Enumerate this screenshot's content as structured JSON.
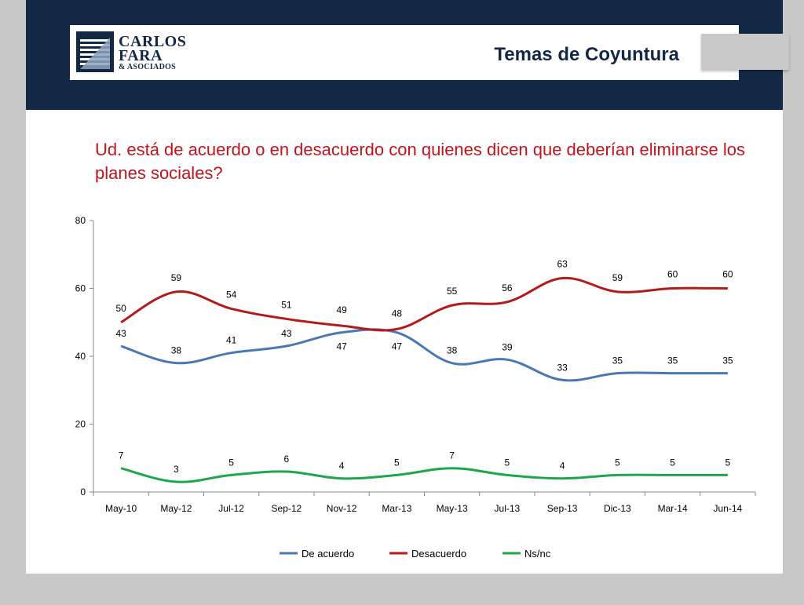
{
  "header": {
    "logo": {
      "line1": "CARLOS",
      "line2": "FARA",
      "line3": "& ASOCIADOS"
    },
    "title": "Temas de Coyuntura"
  },
  "question": "Ud. está de acuerdo o en desacuerdo con quienes dicen que deberían eliminarse los planes sociales?",
  "colors": {
    "header_bg": "#132845",
    "question": "#c0141c",
    "de_acuerdo": "#4a78b5",
    "desacuerdo": "#b51a1a",
    "nsnc": "#1ea64a"
  },
  "chart_data": {
    "type": "line",
    "categories": [
      "May-10",
      "May-12",
      "Jul-12",
      "Sep-12",
      "Nov-12",
      "Mar-13",
      "May-13",
      "Jul-13",
      "Sep-13",
      "Dic-13",
      "Mar-14",
      "Jun-14"
    ],
    "ylim": [
      0,
      80
    ],
    "yticks": [
      "0",
      "20",
      "40",
      "60",
      "80"
    ],
    "grid": false,
    "legend_position": "bottom",
    "series": [
      {
        "name": "De acuerdo",
        "color": "#4a78b5",
        "values": [
          43,
          38,
          41,
          43,
          47,
          47,
          38,
          39,
          33,
          35,
          35,
          35
        ]
      },
      {
        "name": "Desacuerdo",
        "color": "#b51a1a",
        "values": [
          50,
          59,
          54,
          51,
          49,
          48,
          55,
          56,
          63,
          59,
          60,
          60
        ]
      },
      {
        "name": "Ns/nc",
        "color": "#1ea64a",
        "values": [
          7,
          3,
          5,
          6,
          4,
          5,
          7,
          5,
          4,
          5,
          5,
          5
        ]
      }
    ]
  }
}
